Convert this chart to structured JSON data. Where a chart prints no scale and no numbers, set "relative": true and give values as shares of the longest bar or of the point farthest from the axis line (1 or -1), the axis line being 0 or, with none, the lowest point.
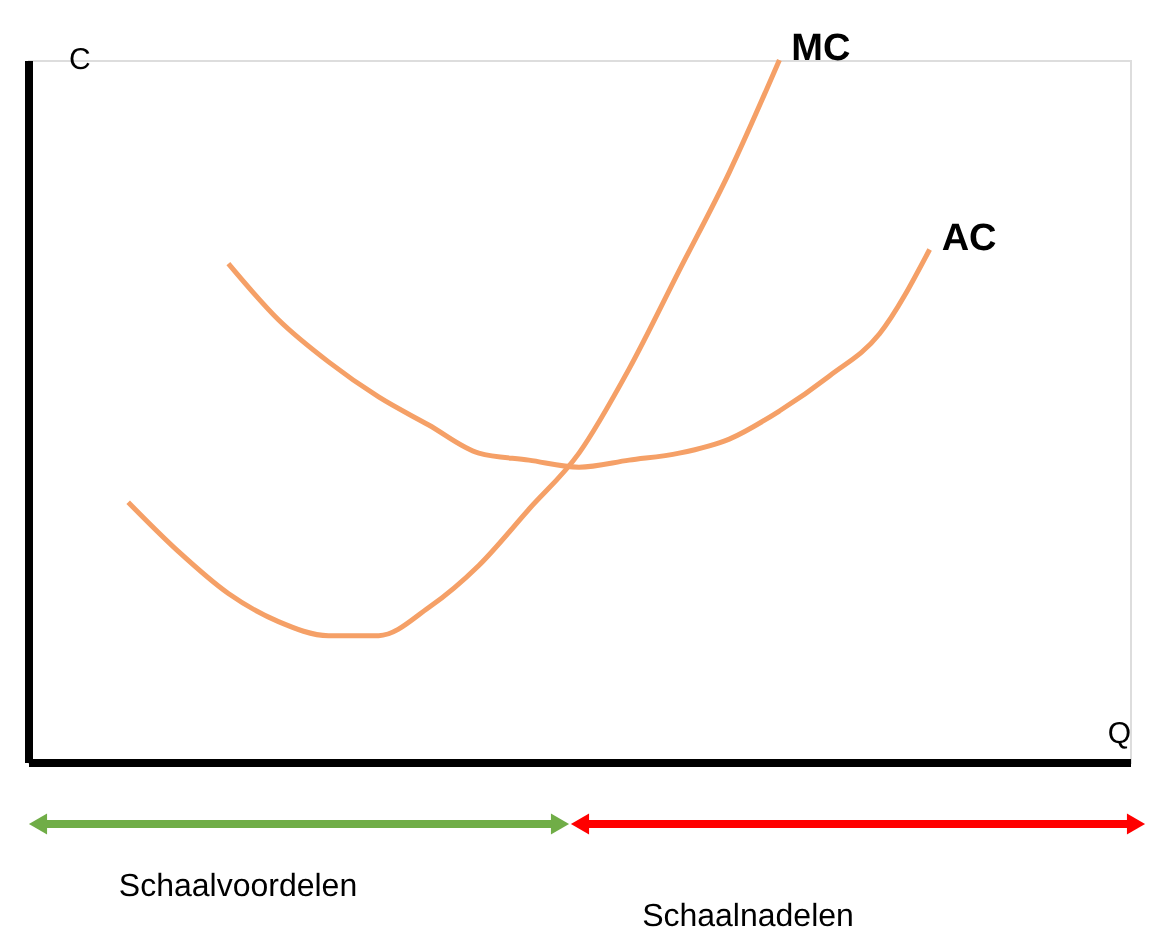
{
  "chart_data": {
    "type": "line",
    "relative": true,
    "xlabel": "Q",
    "ylabel": "C",
    "categories": [
      null,
      null,
      null,
      null,
      null,
      null,
      null,
      null,
      null,
      null,
      null,
      null,
      null,
      null,
      null,
      null,
      null,
      null,
      null,
      null,
      null
    ],
    "series": [
      {
        "name": "MC",
        "color": "#f5a067",
        "values": [
          null,
          0.37,
          0.3,
          0.24,
          0.2,
          0.18,
          0.18,
          0.22,
          0.28,
          0.36,
          0.44,
          0.56,
          0.7,
          0.84,
          1,
          null,
          null,
          null,
          null,
          null,
          null
        ]
      },
      {
        "name": "AC",
        "color": "#f5a067",
        "values": [
          null,
          null,
          null,
          0.71,
          0.63,
          0.57,
          0.52,
          0.48,
          0.44,
          0.43,
          0.42,
          0.43,
          0.44,
          0.46,
          0.5,
          0.55,
          0.61,
          0.73,
          null,
          null,
          null
        ]
      }
    ],
    "annotations": [
      "Schaalvoordelen",
      "Schaalnadelen"
    ],
    "marker": "none",
    "line_style": "solid"
  }
}
